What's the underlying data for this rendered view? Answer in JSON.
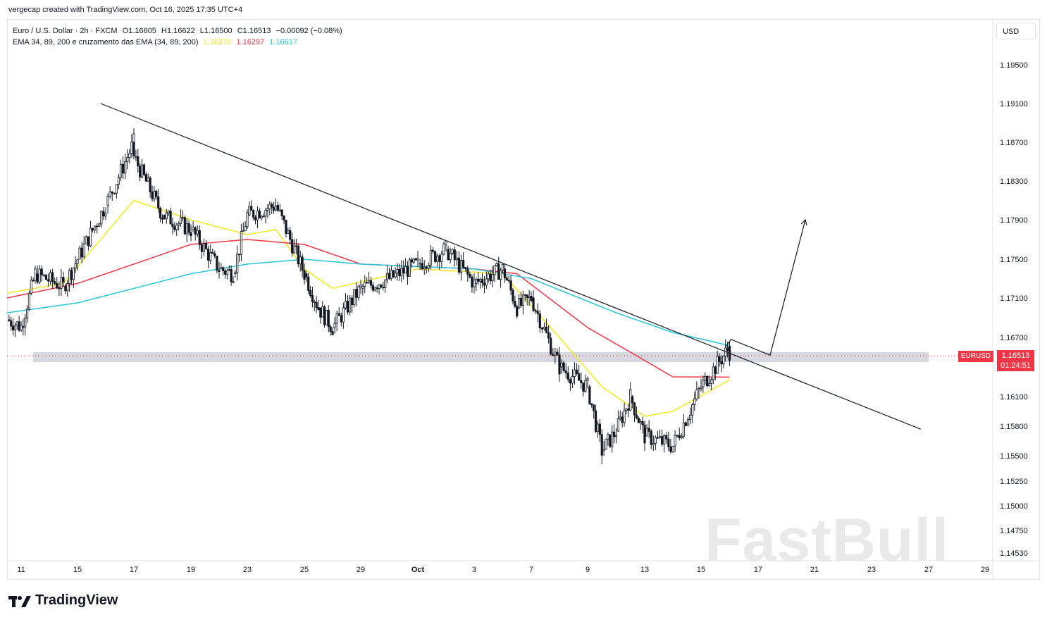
{
  "header": {
    "credit": "vergecap created with TradingView.com, Oct 16, 2025 17:35 UTC+4"
  },
  "legend": {
    "symbol_line": "Euro / U.S. Dollar · 2h · FXCM",
    "ohlc": {
      "o": "O1.16605",
      "h": "H1.16622",
      "l": "L1.16500",
      "c": "C1.16513",
      "chg": "−0.00092 (−0.08%)"
    },
    "ema_label": "EMA 34, 89, 200 e cruzamento das EMA (34, 89, 200)",
    "ema_values": [
      {
        "value": "1.16270",
        "color": "#f5e71e"
      },
      {
        "value": "1.16297",
        "color": "#f23645"
      },
      {
        "value": "1.16617",
        "color": "#26c6da"
      }
    ]
  },
  "currency": "USD",
  "price_badge": {
    "symbol": "EURUSD",
    "price": "1.16513",
    "countdown": "01:24:51",
    "color": "#f23645"
  },
  "brand": {
    "name": "TradingView"
  },
  "watermark": "FastBull",
  "chart_data": {
    "type": "candlestick",
    "ylim": [
      1.1453,
      1.1984
    ],
    "y_ticks": [
      "1.19500",
      "1.19100",
      "1.18700",
      "1.18300",
      "1.17900",
      "1.17500",
      "1.17100",
      "1.16700",
      "1.16100",
      "1.15800",
      "1.15500",
      "1.15250",
      "1.15000",
      "1.14750",
      "1.14530"
    ],
    "x_ticks": [
      "11",
      "15",
      "17",
      "19",
      "23",
      "25",
      "29",
      "Oct",
      "3",
      "7",
      "9",
      "13",
      "15",
      "17",
      "21",
      "23",
      "27",
      "29"
    ],
    "x_range": [
      "Sep 10",
      "Oct 29"
    ],
    "price_path": [
      [
        "Sep 10",
        1.1688
      ],
      [
        "Sep 11",
        1.1681
      ],
      [
        "Sep 12",
        1.1735
      ],
      [
        "Sep 14",
        1.1722
      ],
      [
        "Sep 15",
        1.175
      ],
      [
        "Sep 16",
        1.1805
      ],
      [
        "Sep 17",
        1.187
      ],
      [
        "Sep 17",
        1.1855
      ],
      [
        "Sep 18",
        1.1795
      ],
      [
        "Sep 19",
        1.178
      ],
      [
        "Sep 21",
        1.174
      ],
      [
        "Sep 22",
        1.1735
      ],
      [
        "Sep 23",
        1.1795
      ],
      [
        "Sep 24",
        1.1805
      ],
      [
        "Sep 25",
        1.1735
      ],
      [
        "Sep 26",
        1.17
      ],
      [
        "Sep 27",
        1.168
      ],
      [
        "Sep 29",
        1.172
      ],
      [
        "Sep 30",
        1.173
      ],
      [
        "Oct 1",
        1.1745
      ],
      [
        "Oct 2",
        1.176
      ],
      [
        "Oct 3",
        1.1725
      ],
      [
        "Oct 5",
        1.174
      ],
      [
        "Oct 6",
        1.17
      ],
      [
        "Oct 7",
        1.171
      ],
      [
        "Oct 8",
        1.164
      ],
      [
        "Oct 9",
        1.162
      ],
      [
        "Oct 10",
        1.1555
      ],
      [
        "Oct 11",
        1.1575
      ],
      [
        "Oct 12",
        1.161
      ],
      [
        "Oct 13",
        1.157
      ],
      [
        "Oct 14",
        1.156
      ],
      [
        "Oct 15",
        1.162
      ],
      [
        "Oct 16",
        1.166
      ],
      [
        "Oct 16",
        1.16513
      ]
    ],
    "series": [
      {
        "name": "EMA 34",
        "color": "#f5e71e",
        "values": [
          [
            "Sep 10",
            1.1715
          ],
          [
            "Sep 14",
            1.1725
          ],
          [
            "Sep 17",
            1.181
          ],
          [
            "Sep 19",
            1.179
          ],
          [
            "Sep 23",
            1.1775
          ],
          [
            "Sep 24",
            1.178
          ],
          [
            "Sep 25",
            1.174
          ],
          [
            "Sep 27",
            1.172
          ],
          [
            "Oct 1",
            1.174
          ],
          [
            "Oct 5",
            1.1735
          ],
          [
            "Oct 8",
            1.167
          ],
          [
            "Oct 10",
            1.162
          ],
          [
            "Oct 13",
            1.159
          ],
          [
            "Oct 14",
            1.1595
          ],
          [
            "Oct 16",
            1.1627
          ]
        ]
      },
      {
        "name": "EMA 89",
        "color": "#f23645",
        "values": [
          [
            "Sep 10",
            1.171
          ],
          [
            "Sep 15",
            1.1725
          ],
          [
            "Sep 19",
            1.1765
          ],
          [
            "Sep 23",
            1.177
          ],
          [
            "Sep 25",
            1.1765
          ],
          [
            "Sep 29",
            1.1745
          ],
          [
            "Oct 3",
            1.174
          ],
          [
            "Oct 6",
            1.1735
          ],
          [
            "Oct 9",
            1.168
          ],
          [
            "Oct 12",
            1.1655
          ],
          [
            "Oct 14",
            1.163
          ],
          [
            "Oct 16",
            1.16297
          ]
        ]
      },
      {
        "name": "EMA 200",
        "color": "#26c6da",
        "values": [
          [
            "Sep 10",
            1.1695
          ],
          [
            "Sep 15",
            1.1705
          ],
          [
            "Sep 19",
            1.1735
          ],
          [
            "Sep 23",
            1.1745
          ],
          [
            "Sep 25",
            1.175
          ],
          [
            "Sep 29",
            1.1745
          ],
          [
            "Oct 3",
            1.174
          ],
          [
            "Oct 7",
            1.173
          ],
          [
            "Oct 11",
            1.1695
          ],
          [
            "Oct 14",
            1.1675
          ],
          [
            "Oct 16",
            1.16617
          ]
        ]
      }
    ],
    "annotations": [
      {
        "kind": "trendline",
        "color": "#131722",
        "from": [
          "Sep 16",
          1.191
        ],
        "to": [
          "Oct 26",
          1.1577
        ]
      },
      {
        "kind": "support-zone",
        "color": "#d1d4dc",
        "y_range": [
          1.1645,
          1.1655
        ],
        "from": "Sep 11",
        "to": "Oct 27"
      },
      {
        "kind": "projection-arrow",
        "color": "#131722",
        "points": [
          [
            "Oct 16",
            1.166
          ],
          [
            "Oct 16",
            1.1668
          ],
          [
            "Oct 17",
            1.1652
          ],
          [
            "Oct 18",
            1.179
          ]
        ]
      }
    ],
    "current_price_line": 1.16513,
    "grid": false
  }
}
